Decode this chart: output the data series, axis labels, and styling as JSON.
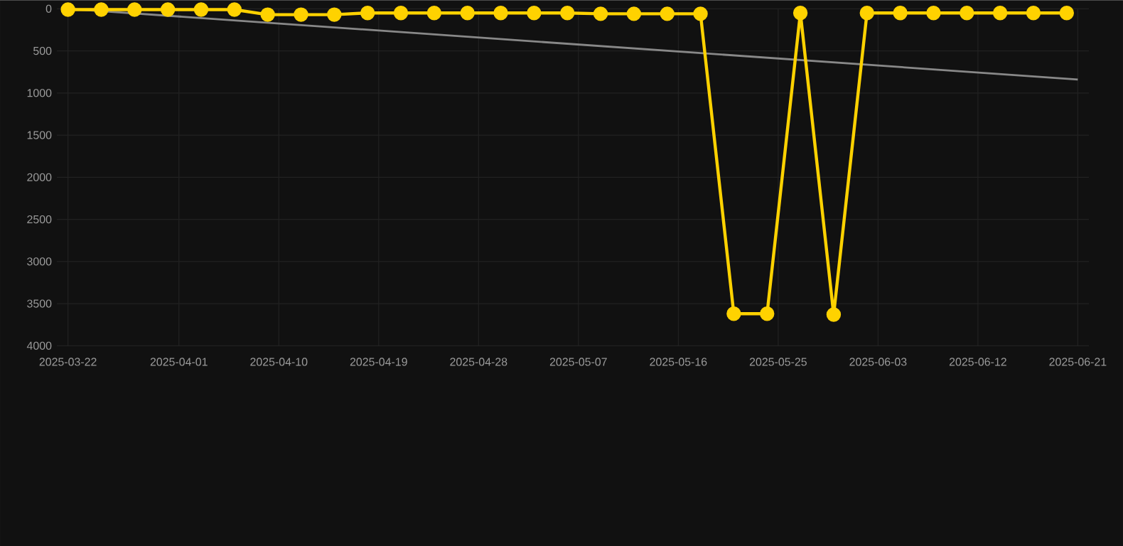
{
  "chart_data": {
    "type": "line",
    "x": [
      "2025-03-22",
      "2025-03-25",
      "2025-03-28",
      "2025-03-31",
      "2025-04-03",
      "2025-04-06",
      "2025-04-09",
      "2025-04-12",
      "2025-04-15",
      "2025-04-18",
      "2025-04-21",
      "2025-04-24",
      "2025-04-27",
      "2025-04-30",
      "2025-05-03",
      "2025-05-06",
      "2025-05-09",
      "2025-05-12",
      "2025-05-15",
      "2025-05-18",
      "2025-05-21",
      "2025-05-24",
      "2025-05-27",
      "2025-05-30",
      "2025-06-02",
      "2025-06-05",
      "2025-06-08",
      "2025-06-11",
      "2025-06-14",
      "2025-06-17",
      "2025-06-20"
    ],
    "series": [
      {
        "color": "#ffd200",
        "marker": "circle",
        "values": [
          10,
          10,
          10,
          10,
          10,
          10,
          70,
          70,
          70,
          50,
          50,
          50,
          50,
          50,
          50,
          50,
          60,
          60,
          60,
          60,
          3620,
          3620,
          50,
          3630,
          50,
          50,
          50,
          50,
          50,
          50,
          50
        ]
      },
      {
        "color": "#888888",
        "marker": "none",
        "x": [
          "2025-03-22",
          "2025-06-21"
        ],
        "values": [
          0,
          840
        ]
      }
    ],
    "xlim": [
      "2025-03-21",
      "2025-06-22"
    ],
    "ylim": [
      4000,
      0
    ],
    "xticks": [
      "2025-03-22",
      "2025-04-01",
      "2025-04-10",
      "2025-04-19",
      "2025-04-28",
      "2025-05-07",
      "2025-05-16",
      "2025-05-25",
      "2025-06-03",
      "2025-06-12",
      "2025-06-21"
    ],
    "yticks": [
      0,
      500,
      1000,
      1500,
      2000,
      2500,
      3000,
      3500,
      4000
    ],
    "grid": true,
    "line_style": "solid"
  }
}
